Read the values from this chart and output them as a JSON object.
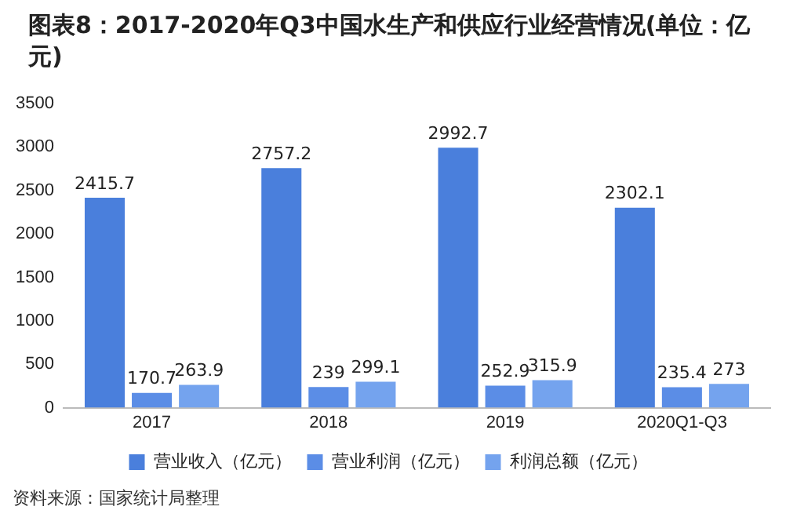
{
  "chart_data": {
    "type": "bar",
    "title": "图表8：2017-2020年Q3中国水生产和供应行业经营情况(单位：亿元)",
    "categories": [
      "2017",
      "2018",
      "2019",
      "2020Q1-Q3"
    ],
    "series": [
      {
        "name": "营业收入（亿元）",
        "color": "#4a7fdc",
        "values": [
          2415.7,
          2757.2,
          2992.7,
          2302.1
        ]
      },
      {
        "name": "营业利润（亿元）",
        "color": "#5b8de6",
        "values": [
          170.7,
          239,
          252.9,
          235.4
        ]
      },
      {
        "name": "利润总额（亿元）",
        "color": "#74a3ee",
        "values": [
          263.9,
          299.1,
          315.9,
          273
        ]
      }
    ],
    "ylim": [
      0,
      3500
    ],
    "yticks": [
      0,
      500,
      1000,
      1500,
      2000,
      2500,
      3000,
      3500
    ],
    "grid": false,
    "legend": "bottom",
    "data_labels": true,
    "annotations": [
      "资料来源：国家统计局整理"
    ]
  }
}
